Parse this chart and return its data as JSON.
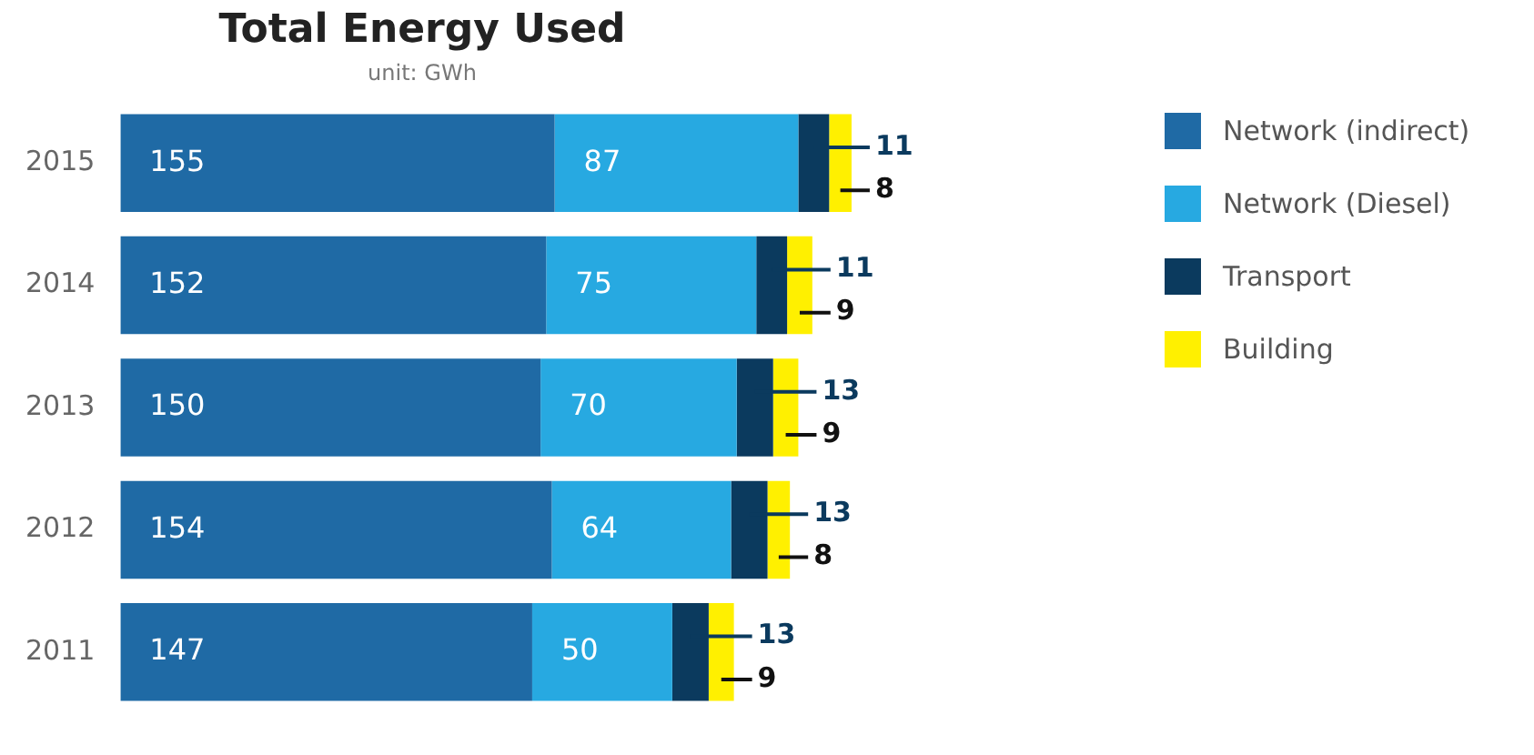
{
  "chart_data": {
    "type": "bar",
    "orientation": "horizontal",
    "stacked": true,
    "title": "Total Energy Used",
    "subtitle": "unit: GWh",
    "categories": [
      "2015",
      "2014",
      "2013",
      "2012",
      "2011"
    ],
    "series": [
      {
        "name": "Network (indirect)",
        "color": "#1f6aa5",
        "values": [
          155,
          152,
          150,
          154,
          147
        ]
      },
      {
        "name": "Network (Diesel)",
        "color": "#27a9e1",
        "values": [
          87,
          75,
          70,
          64,
          50
        ]
      },
      {
        "name": "Transport",
        "color": "#0b3a5e",
        "values": [
          11,
          11,
          13,
          13,
          13
        ]
      },
      {
        "name": "Building",
        "color": "#fff000",
        "values": [
          8,
          9,
          9,
          8,
          9
        ]
      }
    ],
    "data_labels": true,
    "legend": "top right",
    "grid": false,
    "tick_labels": "y"
  }
}
